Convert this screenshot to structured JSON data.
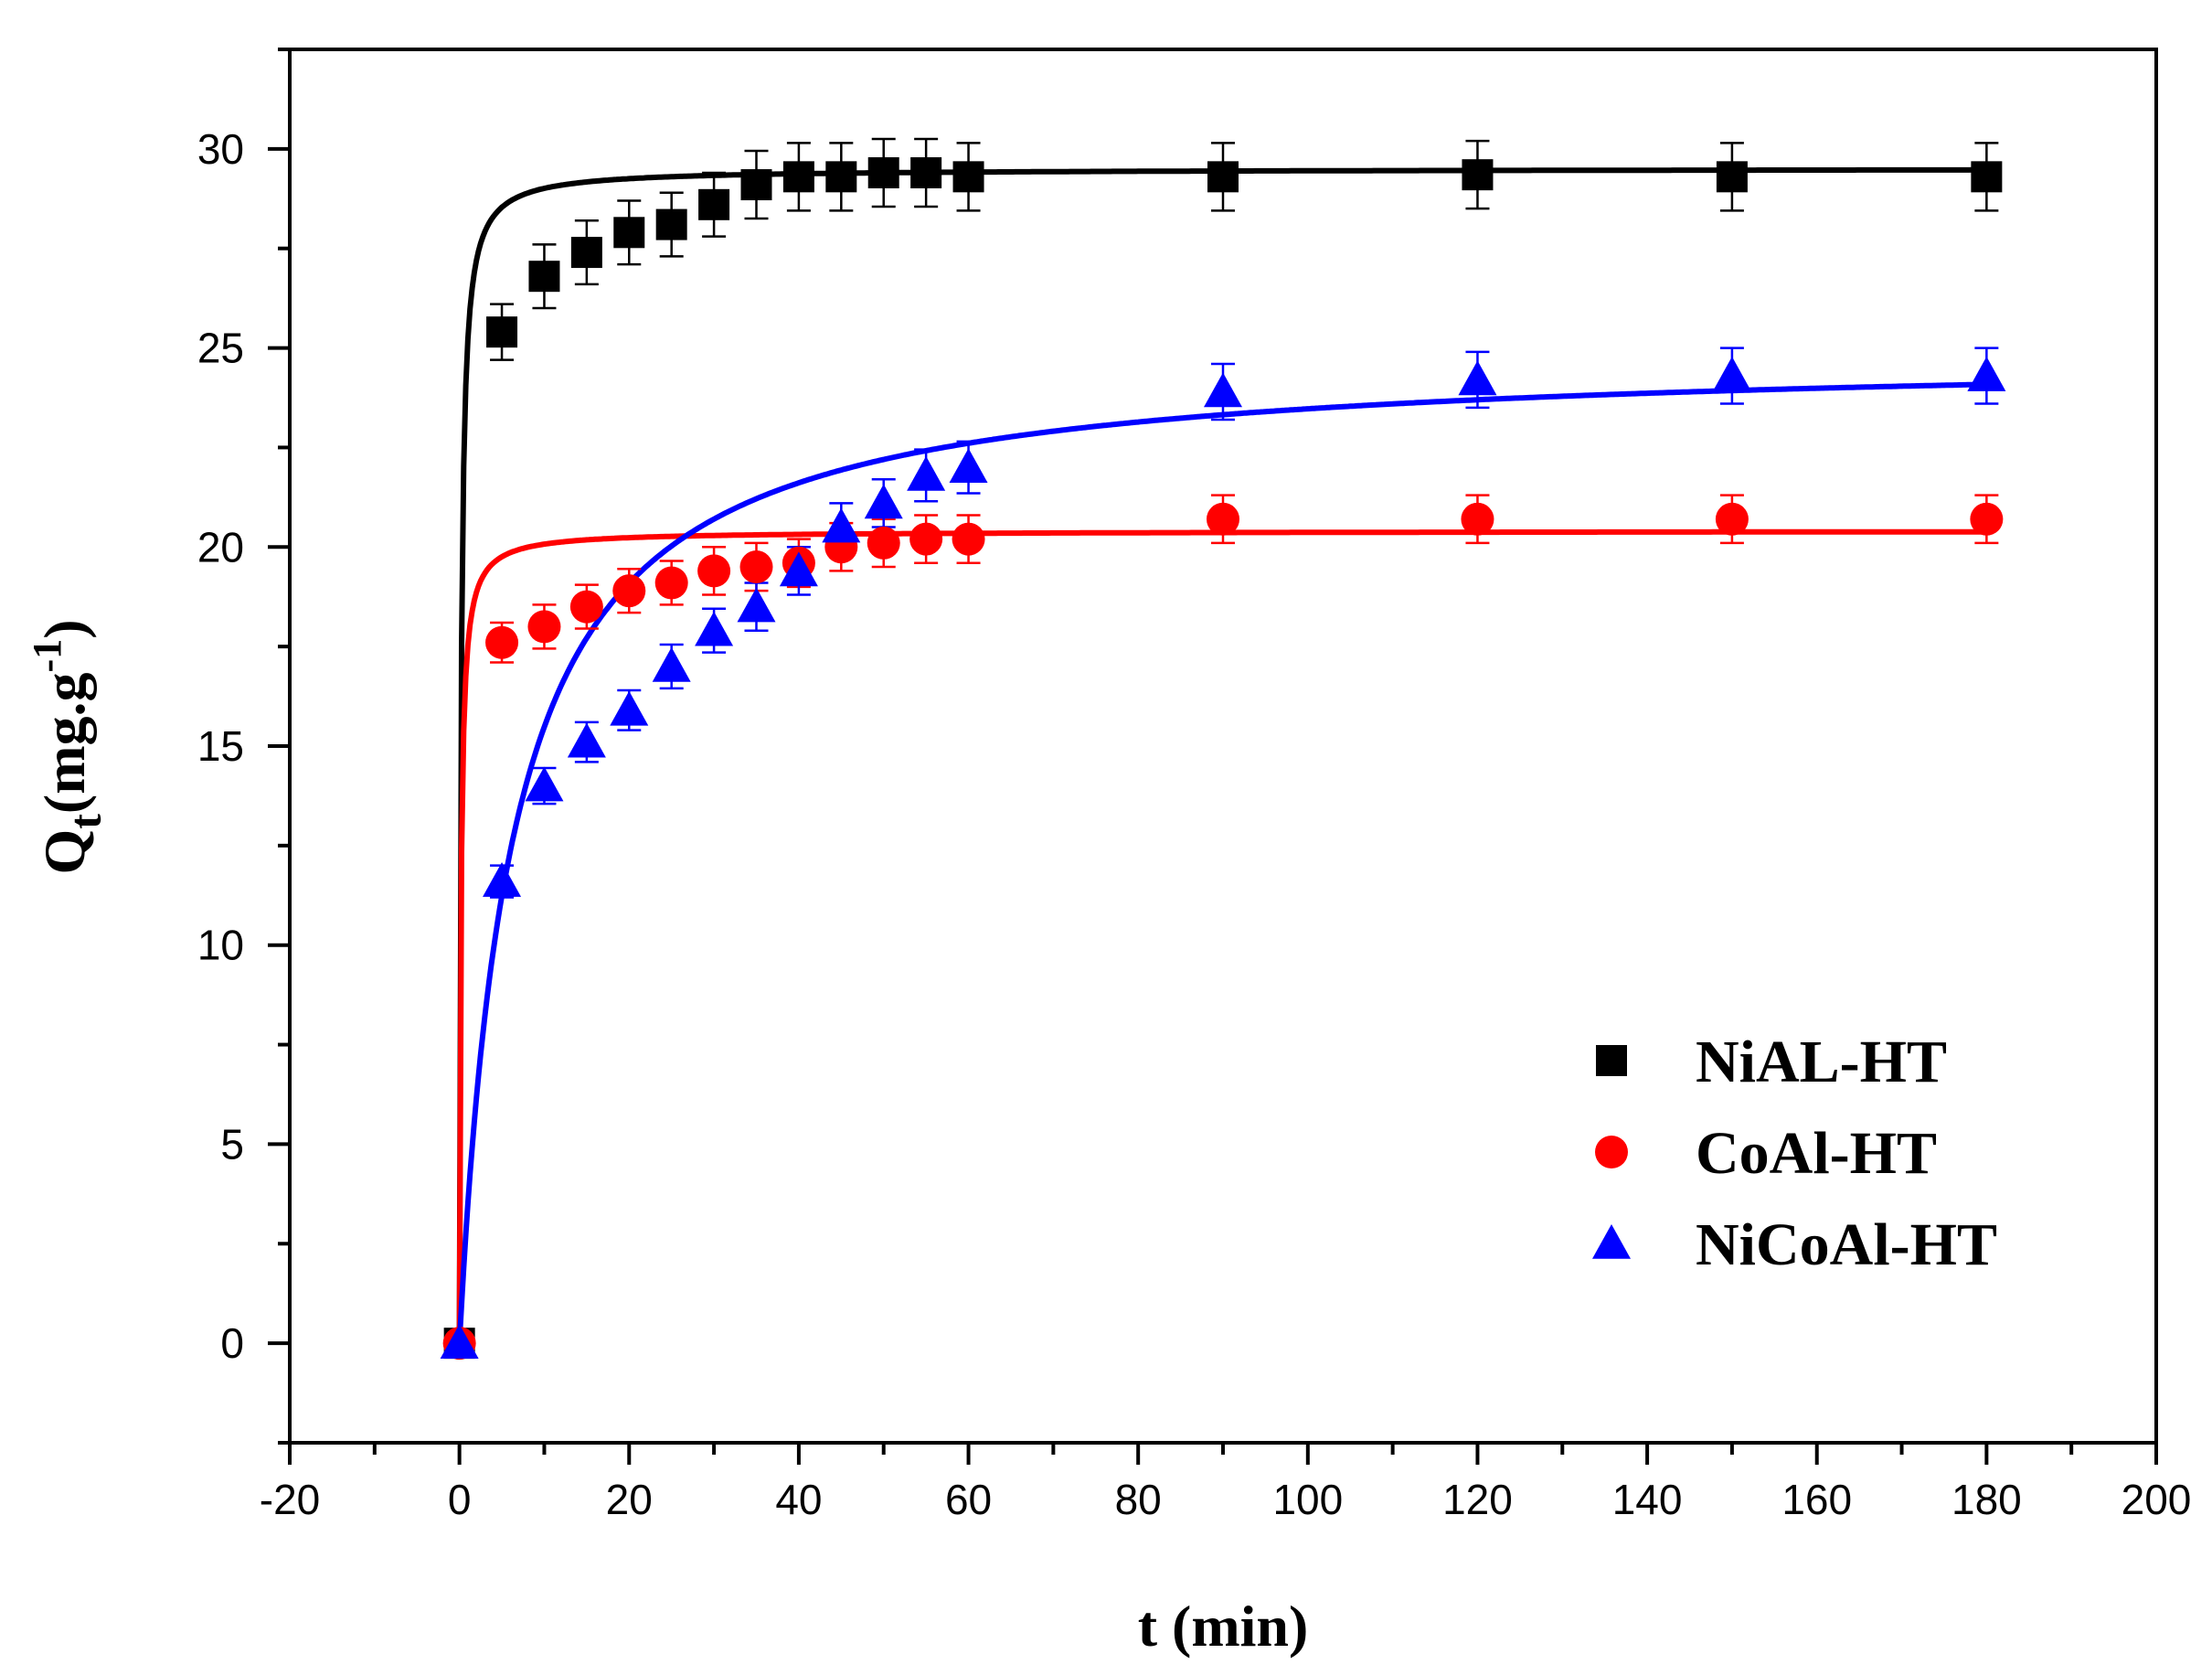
{
  "chart_data": {
    "type": "scatter",
    "title": "",
    "xlabel": "t (min)",
    "ylabel": {
      "main": "Q",
      "sub": "t",
      "unit": "(mg.g",
      "sup": "-1",
      "close": ")"
    },
    "xlim": [
      -20,
      200
    ],
    "ylim": [
      -2.5,
      32.5
    ],
    "xticks": [
      -20,
      0,
      20,
      40,
      60,
      80,
      100,
      120,
      140,
      160,
      180,
      200
    ],
    "yticks": [
      0,
      5,
      10,
      15,
      20,
      25,
      30
    ],
    "legend_position": "bottom-right",
    "series": [
      {
        "name": "NiAL-HT",
        "color": "#000000",
        "marker": "square",
        "points": [
          {
            "x": 0,
            "y": 0,
            "err": 0
          },
          {
            "x": 5,
            "y": 25.4,
            "err": 0.7
          },
          {
            "x": 10,
            "y": 26.8,
            "err": 0.8
          },
          {
            "x": 15,
            "y": 27.4,
            "err": 0.8
          },
          {
            "x": 20,
            "y": 27.9,
            "err": 0.8
          },
          {
            "x": 25,
            "y": 28.1,
            "err": 0.8
          },
          {
            "x": 30,
            "y": 28.6,
            "err": 0.8
          },
          {
            "x": 35,
            "y": 29.1,
            "err": 0.85
          },
          {
            "x": 40,
            "y": 29.3,
            "err": 0.85
          },
          {
            "x": 45,
            "y": 29.3,
            "err": 0.85
          },
          {
            "x": 50,
            "y": 29.4,
            "err": 0.85
          },
          {
            "x": 55,
            "y": 29.4,
            "err": 0.85
          },
          {
            "x": 60,
            "y": 29.3,
            "err": 0.85
          },
          {
            "x": 90,
            "y": 29.3,
            "err": 0.85
          },
          {
            "x": 120,
            "y": 29.35,
            "err": 0.85
          },
          {
            "x": 150,
            "y": 29.3,
            "err": 0.85
          },
          {
            "x": 180,
            "y": 29.3,
            "err": 0.85
          }
        ],
        "fit": {
          "model": "pseudo-second-order",
          "qe": 29.5,
          "k": 0.2
        }
      },
      {
        "name": "CoAl-HT",
        "color": "#ff0000",
        "marker": "circle",
        "points": [
          {
            "x": 0,
            "y": 0,
            "err": 0
          },
          {
            "x": 5,
            "y": 17.6,
            "err": 0.5
          },
          {
            "x": 10,
            "y": 18.0,
            "err": 0.55
          },
          {
            "x": 15,
            "y": 18.5,
            "err": 0.55
          },
          {
            "x": 20,
            "y": 18.9,
            "err": 0.55
          },
          {
            "x": 25,
            "y": 19.1,
            "err": 0.55
          },
          {
            "x": 30,
            "y": 19.4,
            "err": 0.6
          },
          {
            "x": 35,
            "y": 19.5,
            "err": 0.6
          },
          {
            "x": 40,
            "y": 19.6,
            "err": 0.6
          },
          {
            "x": 45,
            "y": 20.0,
            "err": 0.6
          },
          {
            "x": 50,
            "y": 20.1,
            "err": 0.6
          },
          {
            "x": 55,
            "y": 20.2,
            "err": 0.6
          },
          {
            "x": 60,
            "y": 20.2,
            "err": 0.6
          },
          {
            "x": 90,
            "y": 20.7,
            "err": 0.6
          },
          {
            "x": 120,
            "y": 20.7,
            "err": 0.6
          },
          {
            "x": 150,
            "y": 20.7,
            "err": 0.6
          },
          {
            "x": 180,
            "y": 20.7,
            "err": 0.6
          }
        ],
        "fit": {
          "model": "pseudo-second-order",
          "qe": 20.4,
          "k": 0.3
        }
      },
      {
        "name": "NiCoAl-HT",
        "color": "#0000ff",
        "marker": "triangle",
        "points": [
          {
            "x": 0,
            "y": 0,
            "err": 0
          },
          {
            "x": 5,
            "y": 11.6,
            "err": 0.4
          },
          {
            "x": 10,
            "y": 14.0,
            "err": 0.45
          },
          {
            "x": 15,
            "y": 15.1,
            "err": 0.5
          },
          {
            "x": 20,
            "y": 15.9,
            "err": 0.5
          },
          {
            "x": 25,
            "y": 17.0,
            "err": 0.55
          },
          {
            "x": 30,
            "y": 17.9,
            "err": 0.55
          },
          {
            "x": 35,
            "y": 18.5,
            "err": 0.6
          },
          {
            "x": 40,
            "y": 19.4,
            "err": 0.6
          },
          {
            "x": 45,
            "y": 20.5,
            "err": 0.6
          },
          {
            "x": 50,
            "y": 21.1,
            "err": 0.6
          },
          {
            "x": 55,
            "y": 21.8,
            "err": 0.65
          },
          {
            "x": 60,
            "y": 22.0,
            "err": 0.65
          },
          {
            "x": 90,
            "y": 23.9,
            "err": 0.7
          },
          {
            "x": 120,
            "y": 24.2,
            "err": 0.7
          },
          {
            "x": 150,
            "y": 24.3,
            "err": 0.7
          },
          {
            "x": 180,
            "y": 24.3,
            "err": 0.7
          }
        ],
        "fit": {
          "model": "pseudo-second-order",
          "qe": 24.9,
          "k": 0.0066
        }
      }
    ]
  }
}
